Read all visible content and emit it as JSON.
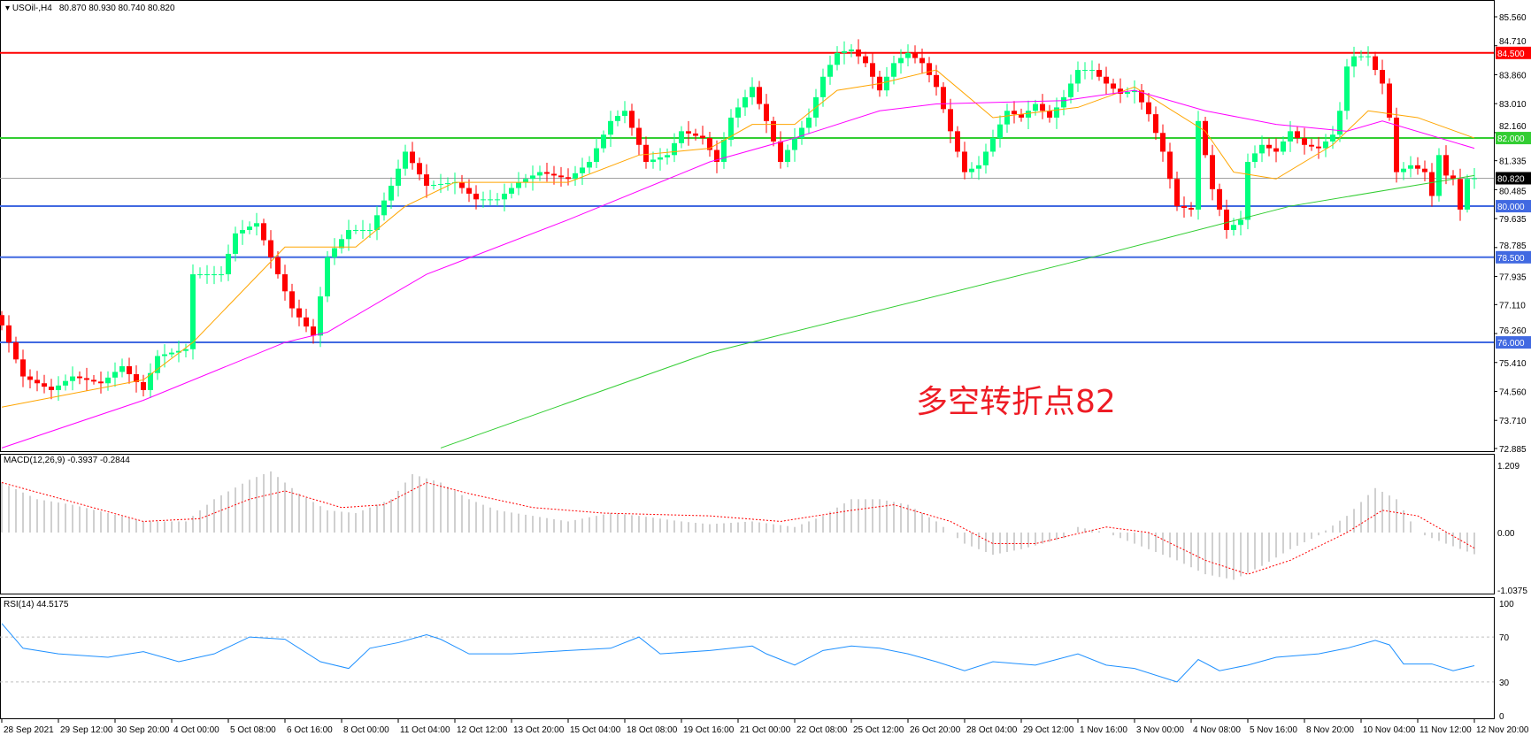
{
  "header": {
    "symbol": "USOil-,H4",
    "ohlc": "80.870 80.930 80.740 80.820"
  },
  "annotation": {
    "text": "多空转折点82",
    "color": "#ee1c25"
  },
  "colors": {
    "bull": "#00ff7f",
    "bear": "#ff0000",
    "ma_fast": "#ffa500",
    "ma_mid": "#ff00ff",
    "ma_slow": "#32cd32",
    "rsi": "#1e90ff",
    "macd_hist": "#c0c0c0",
    "macd_signal": "#ff0000"
  },
  "chart_data": [
    {
      "type": "candlestick",
      "title": "USOil-,H4",
      "ylim": [
        72.885,
        85.56
      ],
      "price_ticks": [
        "85.560",
        "84.710",
        "83.860",
        "83.010",
        "82.160",
        "81.335",
        "80.485",
        "79.635",
        "78.785",
        "77.935",
        "77.110",
        "76.260",
        "75.410",
        "74.560",
        "73.710",
        "72.885"
      ],
      "x_labels": [
        "28 Sep 2021",
        "29 Sep 12:00",
        "30 Sep 20:00",
        "4 Oct 00:00",
        "5 Oct 08:00",
        "6 Oct 16:00",
        "8 Oct 00:00",
        "11 Oct 04:00",
        "12 Oct 12:00",
        "13 Oct 20:00",
        "15 Oct 04:00",
        "18 Oct 08:00",
        "19 Oct 16:00",
        "21 Oct 00:00",
        "22 Oct 08:00",
        "25 Oct 12:00",
        "26 Oct 20:00",
        "28 Oct 04:00",
        "29 Oct 12:00",
        "1 Nov 16:00",
        "3 Nov 00:00",
        "4 Nov 08:00",
        "5 Nov 16:00",
        "8 Nov 20:00",
        "10 Nov 04:00",
        "11 Nov 12:00",
        "12 Nov 20:00"
      ],
      "bars": 209,
      "close_keypoints": [
        [
          0,
          76.5
        ],
        [
          3,
          75.0
        ],
        [
          7,
          74.6
        ],
        [
          10,
          75.0
        ],
        [
          14,
          74.8
        ],
        [
          17,
          75.3
        ],
        [
          20,
          74.6
        ],
        [
          22,
          75.6
        ],
        [
          26,
          75.8
        ],
        [
          27,
          78.0
        ],
        [
          31,
          78.0
        ],
        [
          33,
          79.2
        ],
        [
          36,
          79.5
        ],
        [
          38,
          78.5
        ],
        [
          41,
          77.0
        ],
        [
          44,
          76.2
        ],
        [
          46,
          78.5
        ],
        [
          49,
          79.3
        ],
        [
          52,
          79.3
        ],
        [
          55,
          80.6
        ],
        [
          57,
          81.6
        ],
        [
          60,
          80.6
        ],
        [
          64,
          80.7
        ],
        [
          67,
          80.2
        ],
        [
          70,
          80.2
        ],
        [
          73,
          80.7
        ],
        [
          76,
          81.0
        ],
        [
          80,
          80.8
        ],
        [
          83,
          81.3
        ],
        [
          86,
          82.5
        ],
        [
          88,
          82.8
        ],
        [
          91,
          81.3
        ],
        [
          94,
          81.5
        ],
        [
          96,
          82.2
        ],
        [
          99,
          82.0
        ],
        [
          101,
          81.3
        ],
        [
          103,
          82.6
        ],
        [
          106,
          83.5
        ],
        [
          108,
          82.5
        ],
        [
          110,
          81.3
        ],
        [
          112,
          82.0
        ],
        [
          114,
          82.6
        ],
        [
          116,
          83.8
        ],
        [
          118,
          84.5
        ],
        [
          120,
          84.6
        ],
        [
          122,
          84.2
        ],
        [
          124,
          83.4
        ],
        [
          126,
          84.2
        ],
        [
          128,
          84.5
        ],
        [
          130,
          84.2
        ],
        [
          132,
          83.5
        ],
        [
          134,
          82.2
        ],
        [
          136,
          81.0
        ],
        [
          138,
          81.2
        ],
        [
          140,
          82.0
        ],
        [
          142,
          82.8
        ],
        [
          144,
          82.6
        ],
        [
          146,
          83.0
        ],
        [
          148,
          82.6
        ],
        [
          150,
          83.2
        ],
        [
          152,
          84.0
        ],
        [
          154,
          84.0
        ],
        [
          156,
          83.6
        ],
        [
          158,
          83.3
        ],
        [
          160,
          83.4
        ],
        [
          162,
          82.7
        ],
        [
          164,
          81.6
        ],
        [
          166,
          80.0
        ],
        [
          168,
          79.9
        ],
        [
          169,
          82.5
        ],
        [
          171,
          80.5
        ],
        [
          173,
          79.3
        ],
        [
          175,
          79.6
        ],
        [
          176,
          81.3
        ],
        [
          178,
          81.8
        ],
        [
          180,
          81.6
        ],
        [
          182,
          82.2
        ],
        [
          184,
          81.8
        ],
        [
          186,
          81.7
        ],
        [
          188,
          82.1
        ],
        [
          189,
          82.8
        ],
        [
          190,
          84.1
        ],
        [
          191,
          84.4
        ],
        [
          193,
          84.4
        ],
        [
          195,
          83.6
        ],
        [
          196,
          82.6
        ],
        [
          197,
          81.0
        ],
        [
          199,
          81.2
        ],
        [
          201,
          81.0
        ],
        [
          202,
          80.3
        ],
        [
          203,
          81.5
        ],
        [
          204,
          80.9
        ],
        [
          205,
          80.8
        ],
        [
          206,
          79.9
        ],
        [
          207,
          80.8
        ],
        [
          208,
          80.82
        ]
      ],
      "ma_fast": [
        [
          0,
          74.1
        ],
        [
          20,
          74.9
        ],
        [
          27,
          76.0
        ],
        [
          40,
          78.8
        ],
        [
          50,
          78.8
        ],
        [
          57,
          80.0
        ],
        [
          64,
          80.7
        ],
        [
          80,
          80.7
        ],
        [
          90,
          81.5
        ],
        [
          100,
          81.7
        ],
        [
          106,
          82.4
        ],
        [
          112,
          82.4
        ],
        [
          118,
          83.4
        ],
        [
          124,
          83.6
        ],
        [
          132,
          84.0
        ],
        [
          140,
          82.6
        ],
        [
          148,
          82.8
        ],
        [
          152,
          82.9
        ],
        [
          160,
          83.5
        ],
        [
          170,
          82.2
        ],
        [
          174,
          81.0
        ],
        [
          180,
          80.8
        ],
        [
          188,
          81.8
        ],
        [
          193,
          82.8
        ],
        [
          200,
          82.6
        ],
        [
          208,
          82.0
        ]
      ],
      "ma_mid": [
        [
          0,
          72.9
        ],
        [
          20,
          74.3
        ],
        [
          40,
          76.0
        ],
        [
          46,
          76.3
        ],
        [
          60,
          78.0
        ],
        [
          80,
          79.6
        ],
        [
          100,
          81.3
        ],
        [
          112,
          82.0
        ],
        [
          124,
          82.8
        ],
        [
          132,
          83.0
        ],
        [
          150,
          83.1
        ],
        [
          160,
          83.4
        ],
        [
          170,
          82.8
        ],
        [
          180,
          82.4
        ],
        [
          190,
          82.2
        ],
        [
          195,
          82.5
        ],
        [
          208,
          81.7
        ]
      ],
      "ma_slow": [
        [
          62,
          72.9
        ],
        [
          100,
          75.7
        ],
        [
          154,
          78.5
        ],
        [
          182,
          80.0
        ],
        [
          208,
          80.9
        ]
      ],
      "levels": [
        {
          "price": 84.5,
          "label": "84.500",
          "color": "#ff0000"
        },
        {
          "price": 82.0,
          "label": "82.000",
          "color": "#32cd32"
        },
        {
          "price": 80.0,
          "label": "80.000",
          "color": "#4169e1"
        },
        {
          "price": 78.5,
          "label": "78.500",
          "color": "#4169e1"
        },
        {
          "price": 76.0,
          "label": "76.000",
          "color": "#4169e1"
        }
      ],
      "current_price": {
        "price": 80.82,
        "label": "80.820"
      }
    },
    {
      "type": "bar",
      "title": "MACD(12,26,9) -0.3937 -0.2844",
      "ylim": [
        -1.0375,
        1.209
      ],
      "ticks": [
        "1.209",
        "0.00",
        "-1.0375"
      ],
      "histogram": [
        [
          0,
          0.9
        ],
        [
          5,
          0.6
        ],
        [
          10,
          0.5
        ],
        [
          15,
          0.35
        ],
        [
          20,
          0.2
        ],
        [
          26,
          0.2
        ],
        [
          30,
          0.6
        ],
        [
          35,
          0.95
        ],
        [
          38,
          1.1
        ],
        [
          42,
          0.7
        ],
        [
          46,
          0.4
        ],
        [
          50,
          0.35
        ],
        [
          55,
          0.6
        ],
        [
          58,
          1.05
        ],
        [
          62,
          0.9
        ],
        [
          66,
          0.6
        ],
        [
          70,
          0.4
        ],
        [
          75,
          0.3
        ],
        [
          80,
          0.2
        ],
        [
          86,
          0.35
        ],
        [
          90,
          0.3
        ],
        [
          96,
          0.2
        ],
        [
          100,
          0.15
        ],
        [
          106,
          0.2
        ],
        [
          112,
          0.1
        ],
        [
          116,
          0.3
        ],
        [
          120,
          0.6
        ],
        [
          124,
          0.6
        ],
        [
          128,
          0.5
        ],
        [
          132,
          0.2
        ],
        [
          136,
          -0.2
        ],
        [
          140,
          -0.4
        ],
        [
          144,
          -0.3
        ],
        [
          150,
          -0.1
        ],
        [
          152,
          0.1
        ],
        [
          156,
          0.0
        ],
        [
          160,
          -0.2
        ],
        [
          166,
          -0.5
        ],
        [
          170,
          -0.75
        ],
        [
          174,
          -0.85
        ],
        [
          178,
          -0.6
        ],
        [
          182,
          -0.3
        ],
        [
          186,
          -0.05
        ],
        [
          190,
          0.3
        ],
        [
          194,
          0.8
        ],
        [
          197,
          0.6
        ],
        [
          200,
          0.0
        ],
        [
          204,
          -0.2
        ],
        [
          208,
          -0.39
        ]
      ],
      "signal": [
        [
          0,
          0.9
        ],
        [
          10,
          0.55
        ],
        [
          20,
          0.2
        ],
        [
          28,
          0.25
        ],
        [
          35,
          0.6
        ],
        [
          40,
          0.75
        ],
        [
          48,
          0.45
        ],
        [
          54,
          0.5
        ],
        [
          60,
          0.9
        ],
        [
          66,
          0.7
        ],
        [
          75,
          0.45
        ],
        [
          85,
          0.35
        ],
        [
          100,
          0.3
        ],
        [
          110,
          0.2
        ],
        [
          120,
          0.4
        ],
        [
          126,
          0.5
        ],
        [
          134,
          0.2
        ],
        [
          140,
          -0.2
        ],
        [
          146,
          -0.2
        ],
        [
          156,
          0.1
        ],
        [
          162,
          0.0
        ],
        [
          170,
          -0.5
        ],
        [
          176,
          -0.75
        ],
        [
          182,
          -0.5
        ],
        [
          190,
          0.0
        ],
        [
          195,
          0.4
        ],
        [
          200,
          0.3
        ],
        [
          208,
          -0.28
        ]
      ]
    },
    {
      "type": "line",
      "title": "RSI(14) 44.5175",
      "ylim": [
        0,
        100
      ],
      "ticks": [
        "100",
        "70",
        "30",
        "0"
      ],
      "levels": [
        70,
        30
      ],
      "values": [
        [
          0,
          82
        ],
        [
          3,
          60
        ],
        [
          8,
          55
        ],
        [
          15,
          52
        ],
        [
          20,
          57
        ],
        [
          25,
          48
        ],
        [
          30,
          55
        ],
        [
          35,
          70
        ],
        [
          40,
          68
        ],
        [
          45,
          48
        ],
        [
          49,
          42
        ],
        [
          52,
          60
        ],
        [
          56,
          65
        ],
        [
          60,
          72
        ],
        [
          62,
          68
        ],
        [
          66,
          55
        ],
        [
          72,
          55
        ],
        [
          80,
          58
        ],
        [
          86,
          60
        ],
        [
          90,
          70
        ],
        [
          93,
          55
        ],
        [
          100,
          58
        ],
        [
          106,
          62
        ],
        [
          108,
          55
        ],
        [
          112,
          45
        ],
        [
          116,
          58
        ],
        [
          120,
          62
        ],
        [
          124,
          60
        ],
        [
          128,
          55
        ],
        [
          132,
          48
        ],
        [
          136,
          40
        ],
        [
          140,
          48
        ],
        [
          146,
          45
        ],
        [
          152,
          55
        ],
        [
          156,
          45
        ],
        [
          160,
          42
        ],
        [
          166,
          30
        ],
        [
          169,
          50
        ],
        [
          172,
          40
        ],
        [
          176,
          45
        ],
        [
          180,
          52
        ],
        [
          186,
          55
        ],
        [
          190,
          60
        ],
        [
          194,
          67
        ],
        [
          196,
          63
        ],
        [
          198,
          46
        ],
        [
          202,
          46
        ],
        [
          205,
          40
        ],
        [
          208,
          44.5
        ]
      ]
    }
  ]
}
